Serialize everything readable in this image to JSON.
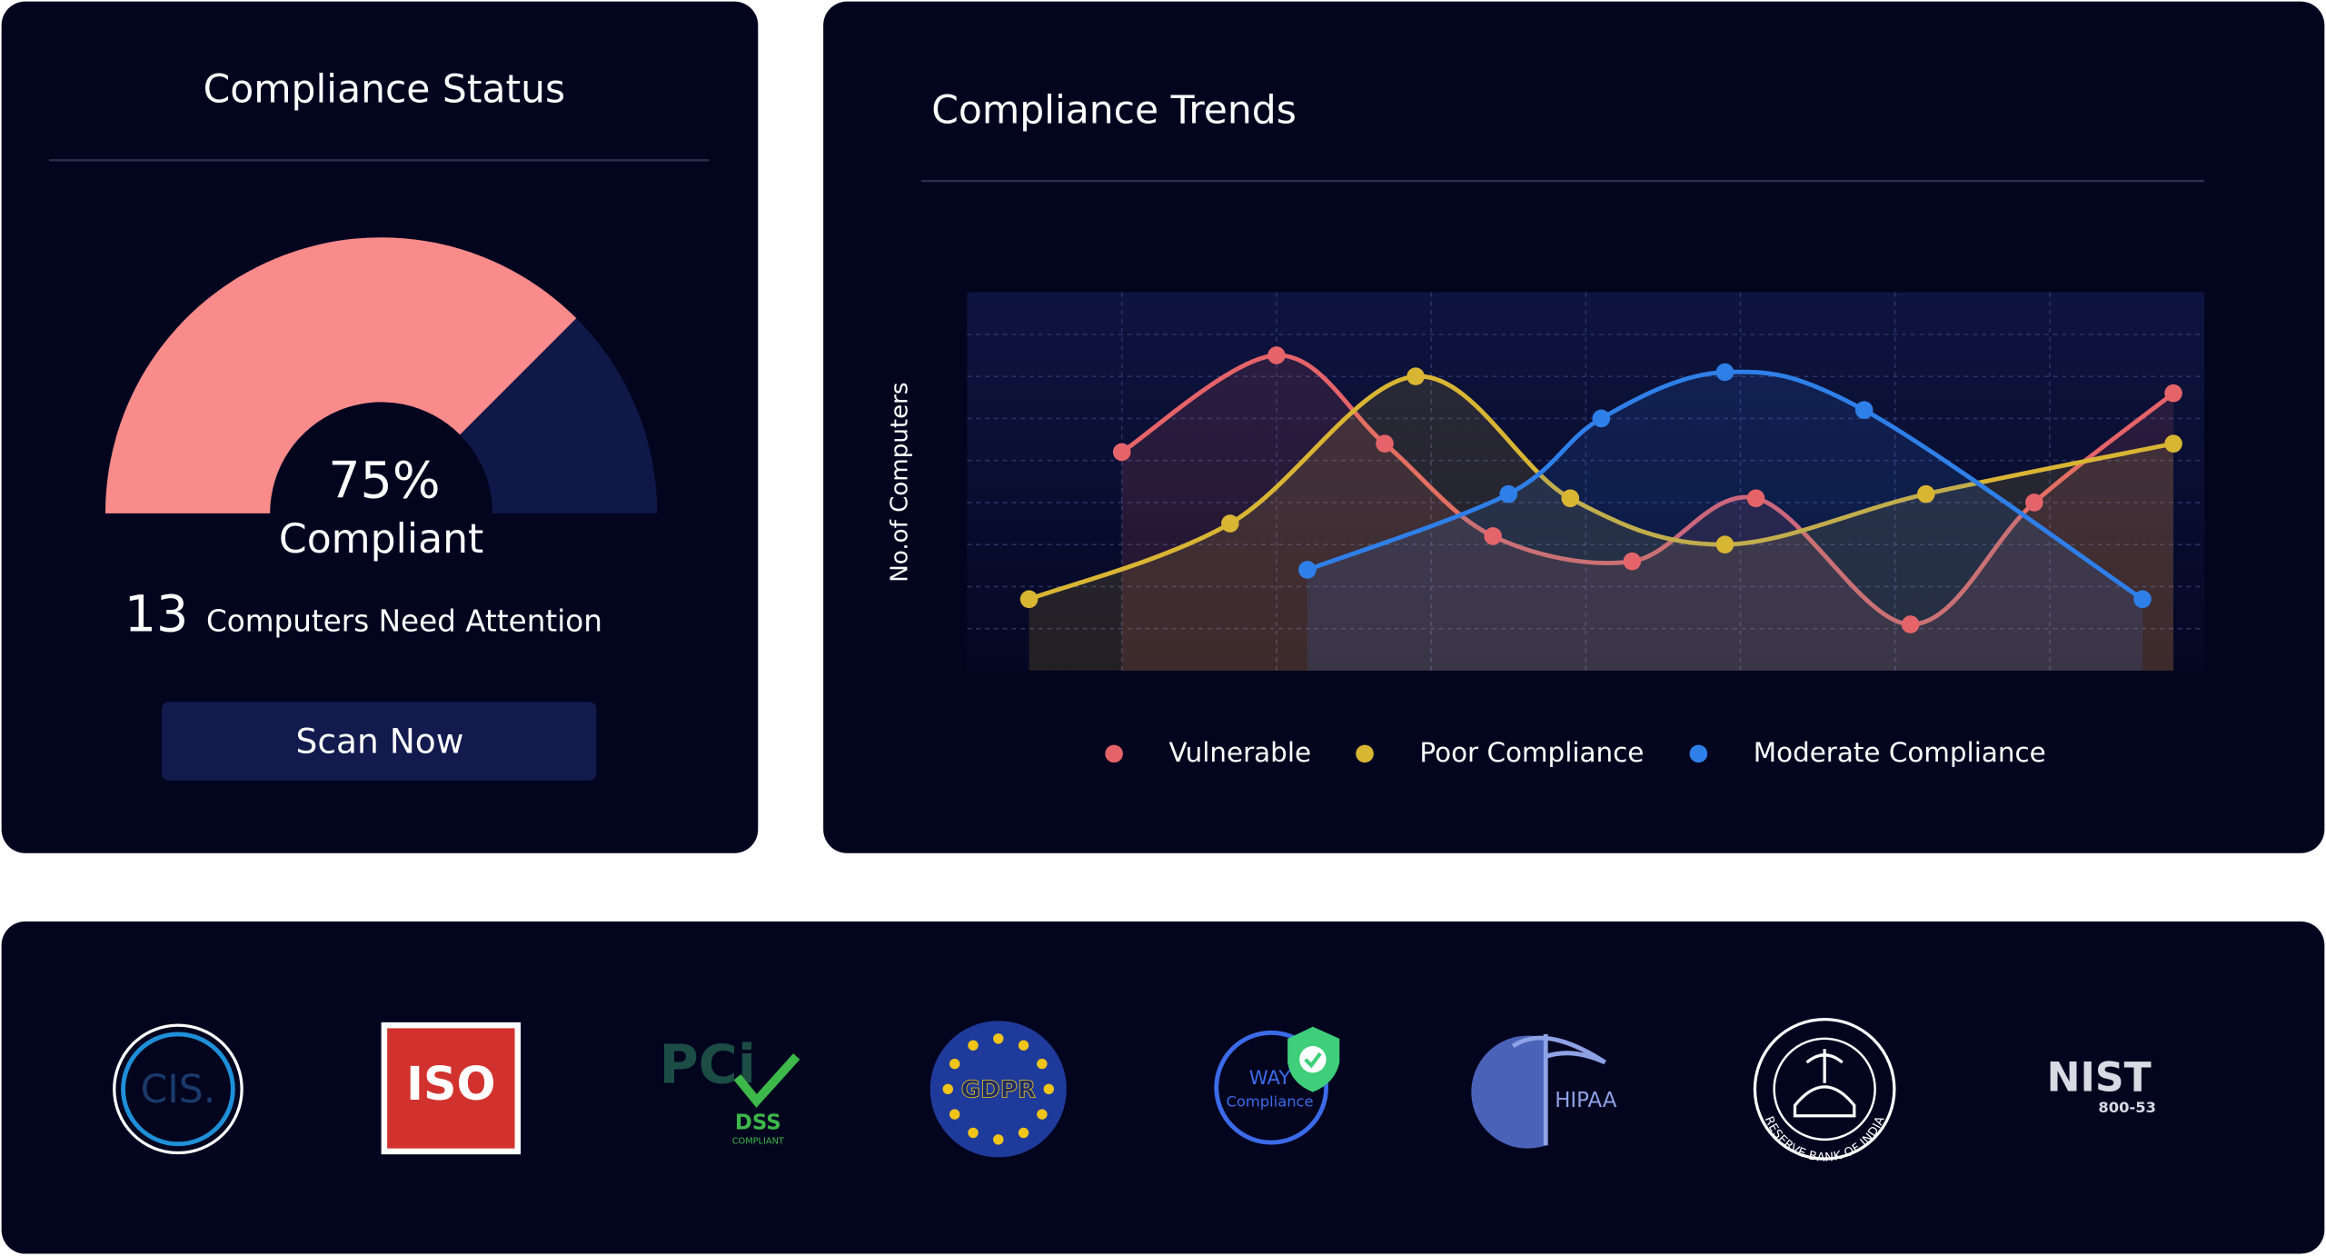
{
  "status": {
    "title": "Compliance Status",
    "gauge": {
      "value": 75,
      "label": "75%"
    },
    "gauge_caption": "Compliant",
    "attention_count": 13,
    "attention_text": "Computers Need Attention",
    "button": "Scan Now"
  },
  "chart_data": {
    "type": "line",
    "title": "Compliance Trends",
    "y_label": "No.of Computers",
    "xlim": [
      0,
      8
    ],
    "xticks": [
      1,
      2,
      3,
      4,
      5,
      6,
      7
    ],
    "ylim": [
      0,
      9
    ],
    "yticks": [
      1,
      2,
      3,
      4,
      5,
      6,
      7,
      8
    ],
    "grid": true,
    "series": [
      {
        "name": "Vulnerable",
        "color": "#e5646a",
        "x": [
          1.0,
          2.0,
          2.7,
          3.4,
          4.3,
          5.1,
          6.1,
          6.9,
          7.8
        ],
        "values": [
          5.2,
          7.5,
          5.4,
          3.2,
          2.6,
          4.1,
          1.1,
          4.0,
          6.6
        ]
      },
      {
        "name": "Poor Compliance",
        "color": "#d9b534",
        "x": [
          0.4,
          1.7,
          2.9,
          3.9,
          4.9,
          6.2,
          7.8
        ],
        "values": [
          1.7,
          3.5,
          7.0,
          4.1,
          3.0,
          4.2,
          5.4
        ]
      },
      {
        "name": "Moderate Compliance",
        "color": "#2f7fe8",
        "x": [
          2.2,
          3.5,
          4.1,
          4.9,
          5.8,
          7.6
        ],
        "values": [
          2.4,
          4.2,
          6.0,
          7.1,
          6.2,
          1.7
        ]
      }
    ]
  },
  "badges": [
    [
      "CIS."
    ],
    [
      "ISO"
    ],
    [
      "PCi",
      "DSS",
      "COMPLIANT"
    ],
    [
      "GDPR"
    ],
    [
      "WAY",
      "Compliance"
    ],
    [
      "HIPAA"
    ],
    [
      "RESERVE BANK OF INDIA"
    ],
    [
      "NIST",
      "800-53"
    ]
  ]
}
